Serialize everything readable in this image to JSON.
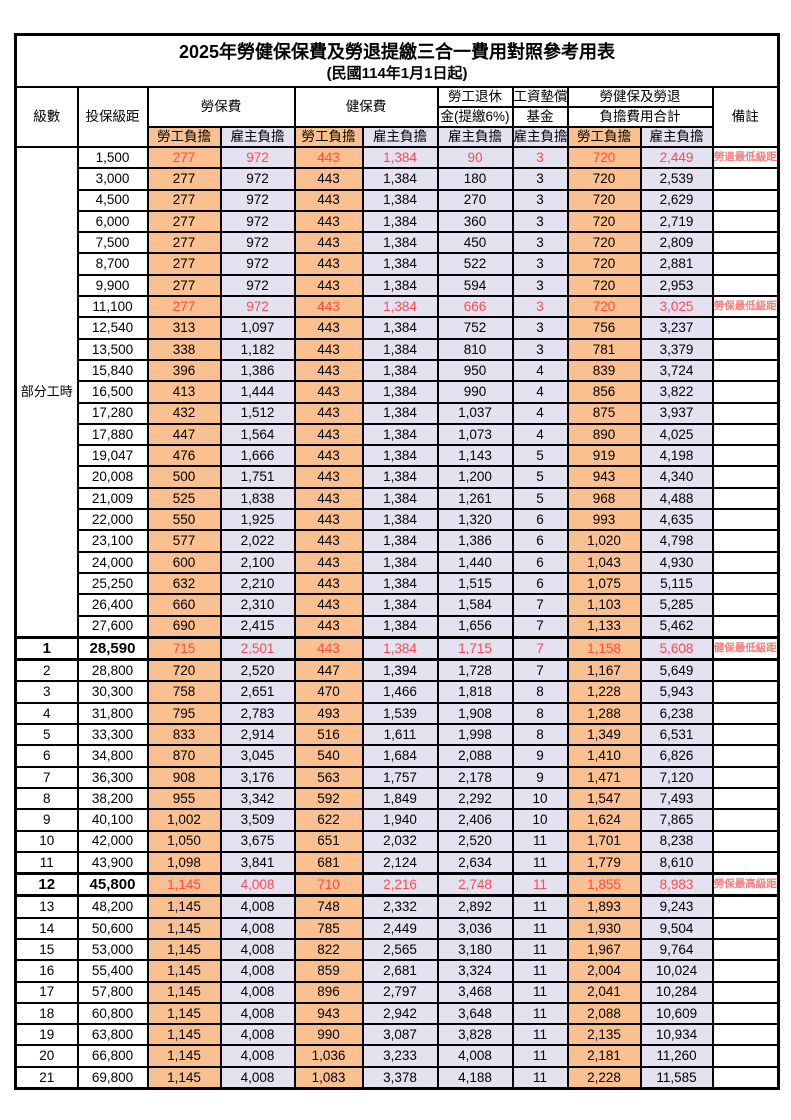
{
  "title": "2025年勞健保保費及勞退提繳三合一費用對照參考用表",
  "subtitle": "(民國114年1月1日起)",
  "colors": {
    "employee_bg": "#FAC08F",
    "employer_bg": "#E4E1F1",
    "red_value": "#FF4B4B",
    "red_remark": "#FF7B7B",
    "border": "#000000"
  },
  "header": {
    "level": "級數",
    "salary": "投保級距",
    "labor_fee": "勞保費",
    "health_fee": "健保費",
    "pension_line1": "勞工退休",
    "pension_line2": "金(提繳6%)",
    "wage_fund_line1": "工資墊償",
    "wage_fund_line2": "基金",
    "total_line1": "勞健保及勞退",
    "total_line2": "負擔費用合計",
    "remark": "備註",
    "employee": "勞工負擔",
    "employer": "雇主負擔"
  },
  "part_time_label": "部分工時",
  "rows": [
    {
      "level": "",
      "salary": "1,500",
      "laborEmp": "277",
      "laborEr": "972",
      "healthEmp": "443",
      "healthEr": "1,384",
      "pension": "90",
      "fund": "3",
      "totalEmp": "720",
      "totalEr": "2,449",
      "remark": "勞退最低級距",
      "red": true,
      "key": false
    },
    {
      "level": "",
      "salary": "3,000",
      "laborEmp": "277",
      "laborEr": "972",
      "healthEmp": "443",
      "healthEr": "1,384",
      "pension": "180",
      "fund": "3",
      "totalEmp": "720",
      "totalEr": "2,539",
      "remark": "",
      "red": false,
      "key": false
    },
    {
      "level": "",
      "salary": "4,500",
      "laborEmp": "277",
      "laborEr": "972",
      "healthEmp": "443",
      "healthEr": "1,384",
      "pension": "270",
      "fund": "3",
      "totalEmp": "720",
      "totalEr": "2,629",
      "remark": "",
      "red": false,
      "key": false
    },
    {
      "level": "",
      "salary": "6,000",
      "laborEmp": "277",
      "laborEr": "972",
      "healthEmp": "443",
      "healthEr": "1,384",
      "pension": "360",
      "fund": "3",
      "totalEmp": "720",
      "totalEr": "2,719",
      "remark": "",
      "red": false,
      "key": false
    },
    {
      "level": "",
      "salary": "7,500",
      "laborEmp": "277",
      "laborEr": "972",
      "healthEmp": "443",
      "healthEr": "1,384",
      "pension": "450",
      "fund": "3",
      "totalEmp": "720",
      "totalEr": "2,809",
      "remark": "",
      "red": false,
      "key": false
    },
    {
      "level": "",
      "salary": "8,700",
      "laborEmp": "277",
      "laborEr": "972",
      "healthEmp": "443",
      "healthEr": "1,384",
      "pension": "522",
      "fund": "3",
      "totalEmp": "720",
      "totalEr": "2,881",
      "remark": "",
      "red": false,
      "key": false
    },
    {
      "level": "",
      "salary": "9,900",
      "laborEmp": "277",
      "laborEr": "972",
      "healthEmp": "443",
      "healthEr": "1,384",
      "pension": "594",
      "fund": "3",
      "totalEmp": "720",
      "totalEr": "2,953",
      "remark": "",
      "red": false,
      "key": false
    },
    {
      "level": "",
      "salary": "11,100",
      "laborEmp": "277",
      "laborEr": "972",
      "healthEmp": "443",
      "healthEr": "1,384",
      "pension": "666",
      "fund": "3",
      "totalEmp": "720",
      "totalEr": "3,025",
      "remark": "勞保最低級距",
      "red": true,
      "key": false
    },
    {
      "level": "",
      "salary": "12,540",
      "laborEmp": "313",
      "laborEr": "1,097",
      "healthEmp": "443",
      "healthEr": "1,384",
      "pension": "752",
      "fund": "3",
      "totalEmp": "756",
      "totalEr": "3,237",
      "remark": "",
      "red": false,
      "key": false
    },
    {
      "level": "",
      "salary": "13,500",
      "laborEmp": "338",
      "laborEr": "1,182",
      "healthEmp": "443",
      "healthEr": "1,384",
      "pension": "810",
      "fund": "3",
      "totalEmp": "781",
      "totalEr": "3,379",
      "remark": "",
      "red": false,
      "key": false
    },
    {
      "level": "",
      "salary": "15,840",
      "laborEmp": "396",
      "laborEr": "1,386",
      "healthEmp": "443",
      "healthEr": "1,384",
      "pension": "950",
      "fund": "4",
      "totalEmp": "839",
      "totalEr": "3,724",
      "remark": "",
      "red": false,
      "key": false
    },
    {
      "level": "",
      "salary": "16,500",
      "laborEmp": "413",
      "laborEr": "1,444",
      "healthEmp": "443",
      "healthEr": "1,384",
      "pension": "990",
      "fund": "4",
      "totalEmp": "856",
      "totalEr": "3,822",
      "remark": "",
      "red": false,
      "key": false
    },
    {
      "level": "",
      "salary": "17,280",
      "laborEmp": "432",
      "laborEr": "1,512",
      "healthEmp": "443",
      "healthEr": "1,384",
      "pension": "1,037",
      "fund": "4",
      "totalEmp": "875",
      "totalEr": "3,937",
      "remark": "",
      "red": false,
      "key": false
    },
    {
      "level": "",
      "salary": "17,880",
      "laborEmp": "447",
      "laborEr": "1,564",
      "healthEmp": "443",
      "healthEr": "1,384",
      "pension": "1,073",
      "fund": "4",
      "totalEmp": "890",
      "totalEr": "4,025",
      "remark": "",
      "red": false,
      "key": false
    },
    {
      "level": "",
      "salary": "19,047",
      "laborEmp": "476",
      "laborEr": "1,666",
      "healthEmp": "443",
      "healthEr": "1,384",
      "pension": "1,143",
      "fund": "5",
      "totalEmp": "919",
      "totalEr": "4,198",
      "remark": "",
      "red": false,
      "key": false
    },
    {
      "level": "",
      "salary": "20,008",
      "laborEmp": "500",
      "laborEr": "1,751",
      "healthEmp": "443",
      "healthEr": "1,384",
      "pension": "1,200",
      "fund": "5",
      "totalEmp": "943",
      "totalEr": "4,340",
      "remark": "",
      "red": false,
      "key": false
    },
    {
      "level": "",
      "salary": "21,009",
      "laborEmp": "525",
      "laborEr": "1,838",
      "healthEmp": "443",
      "healthEr": "1,384",
      "pension": "1,261",
      "fund": "5",
      "totalEmp": "968",
      "totalEr": "4,488",
      "remark": "",
      "red": false,
      "key": false
    },
    {
      "level": "",
      "salary": "22,000",
      "laborEmp": "550",
      "laborEr": "1,925",
      "healthEmp": "443",
      "healthEr": "1,384",
      "pension": "1,320",
      "fund": "6",
      "totalEmp": "993",
      "totalEr": "4,635",
      "remark": "",
      "red": false,
      "key": false
    },
    {
      "level": "",
      "salary": "23,100",
      "laborEmp": "577",
      "laborEr": "2,022",
      "healthEmp": "443",
      "healthEr": "1,384",
      "pension": "1,386",
      "fund": "6",
      "totalEmp": "1,020",
      "totalEr": "4,798",
      "remark": "",
      "red": false,
      "key": false
    },
    {
      "level": "",
      "salary": "24,000",
      "laborEmp": "600",
      "laborEr": "2,100",
      "healthEmp": "443",
      "healthEr": "1,384",
      "pension": "1,440",
      "fund": "6",
      "totalEmp": "1,043",
      "totalEr": "4,930",
      "remark": "",
      "red": false,
      "key": false
    },
    {
      "level": "",
      "salary": "25,250",
      "laborEmp": "632",
      "laborEr": "2,210",
      "healthEmp": "443",
      "healthEr": "1,384",
      "pension": "1,515",
      "fund": "6",
      "totalEmp": "1,075",
      "totalEr": "5,115",
      "remark": "",
      "red": false,
      "key": false
    },
    {
      "level": "",
      "salary": "26,400",
      "laborEmp": "660",
      "laborEr": "2,310",
      "healthEmp": "443",
      "healthEr": "1,384",
      "pension": "1,584",
      "fund": "7",
      "totalEmp": "1,103",
      "totalEr": "5,285",
      "remark": "",
      "red": false,
      "key": false
    },
    {
      "level": "",
      "salary": "27,600",
      "laborEmp": "690",
      "laborEr": "2,415",
      "healthEmp": "443",
      "healthEr": "1,384",
      "pension": "1,656",
      "fund": "7",
      "totalEmp": "1,133",
      "totalEr": "5,462",
      "remark": "",
      "red": false,
      "key": false
    },
    {
      "level": "1",
      "salary": "28,590",
      "laborEmp": "715",
      "laborEr": "2,501",
      "healthEmp": "443",
      "healthEr": "1,384",
      "pension": "1,715",
      "fund": "7",
      "totalEmp": "1,158",
      "totalEr": "5,608",
      "remark": "健保最低級距",
      "red": true,
      "key": true
    },
    {
      "level": "2",
      "salary": "28,800",
      "laborEmp": "720",
      "laborEr": "2,520",
      "healthEmp": "447",
      "healthEr": "1,394",
      "pension": "1,728",
      "fund": "7",
      "totalEmp": "1,167",
      "totalEr": "5,649",
      "remark": "",
      "red": false,
      "key": false
    },
    {
      "level": "3",
      "salary": "30,300",
      "laborEmp": "758",
      "laborEr": "2,651",
      "healthEmp": "470",
      "healthEr": "1,466",
      "pension": "1,818",
      "fund": "8",
      "totalEmp": "1,228",
      "totalEr": "5,943",
      "remark": "",
      "red": false,
      "key": false
    },
    {
      "level": "4",
      "salary": "31,800",
      "laborEmp": "795",
      "laborEr": "2,783",
      "healthEmp": "493",
      "healthEr": "1,539",
      "pension": "1,908",
      "fund": "8",
      "totalEmp": "1,288",
      "totalEr": "6,238",
      "remark": "",
      "red": false,
      "key": false
    },
    {
      "level": "5",
      "salary": "33,300",
      "laborEmp": "833",
      "laborEr": "2,914",
      "healthEmp": "516",
      "healthEr": "1,611",
      "pension": "1,998",
      "fund": "8",
      "totalEmp": "1,349",
      "totalEr": "6,531",
      "remark": "",
      "red": false,
      "key": false
    },
    {
      "level": "6",
      "salary": "34,800",
      "laborEmp": "870",
      "laborEr": "3,045",
      "healthEmp": "540",
      "healthEr": "1,684",
      "pension": "2,088",
      "fund": "9",
      "totalEmp": "1,410",
      "totalEr": "6,826",
      "remark": "",
      "red": false,
      "key": false
    },
    {
      "level": "7",
      "salary": "36,300",
      "laborEmp": "908",
      "laborEr": "3,176",
      "healthEmp": "563",
      "healthEr": "1,757",
      "pension": "2,178",
      "fund": "9",
      "totalEmp": "1,471",
      "totalEr": "7,120",
      "remark": "",
      "red": false,
      "key": false
    },
    {
      "level": "8",
      "salary": "38,200",
      "laborEmp": "955",
      "laborEr": "3,342",
      "healthEmp": "592",
      "healthEr": "1,849",
      "pension": "2,292",
      "fund": "10",
      "totalEmp": "1,547",
      "totalEr": "7,493",
      "remark": "",
      "red": false,
      "key": false
    },
    {
      "level": "9",
      "salary": "40,100",
      "laborEmp": "1,002",
      "laborEr": "3,509",
      "healthEmp": "622",
      "healthEr": "1,940",
      "pension": "2,406",
      "fund": "10",
      "totalEmp": "1,624",
      "totalEr": "7,865",
      "remark": "",
      "red": false,
      "key": false
    },
    {
      "level": "10",
      "salary": "42,000",
      "laborEmp": "1,050",
      "laborEr": "3,675",
      "healthEmp": "651",
      "healthEr": "2,032",
      "pension": "2,520",
      "fund": "11",
      "totalEmp": "1,701",
      "totalEr": "8,238",
      "remark": "",
      "red": false,
      "key": false
    },
    {
      "level": "11",
      "salary": "43,900",
      "laborEmp": "1,098",
      "laborEr": "3,841",
      "healthEmp": "681",
      "healthEr": "2,124",
      "pension": "2,634",
      "fund": "11",
      "totalEmp": "1,779",
      "totalEr": "8,610",
      "remark": "",
      "red": false,
      "key": false
    },
    {
      "level": "12",
      "salary": "45,800",
      "laborEmp": "1,145",
      "laborEr": "4,008",
      "healthEmp": "710",
      "healthEr": "2,216",
      "pension": "2,748",
      "fund": "11",
      "totalEmp": "1,855",
      "totalEr": "8,983",
      "remark": "勞保最高級距",
      "red": true,
      "key": true
    },
    {
      "level": "13",
      "salary": "48,200",
      "laborEmp": "1,145",
      "laborEr": "4,008",
      "healthEmp": "748",
      "healthEr": "2,332",
      "pension": "2,892",
      "fund": "11",
      "totalEmp": "1,893",
      "totalEr": "9,243",
      "remark": "",
      "red": false,
      "key": false
    },
    {
      "level": "14",
      "salary": "50,600",
      "laborEmp": "1,145",
      "laborEr": "4,008",
      "healthEmp": "785",
      "healthEr": "2,449",
      "pension": "3,036",
      "fund": "11",
      "totalEmp": "1,930",
      "totalEr": "9,504",
      "remark": "",
      "red": false,
      "key": false
    },
    {
      "level": "15",
      "salary": "53,000",
      "laborEmp": "1,145",
      "laborEr": "4,008",
      "healthEmp": "822",
      "healthEr": "2,565",
      "pension": "3,180",
      "fund": "11",
      "totalEmp": "1,967",
      "totalEr": "9,764",
      "remark": "",
      "red": false,
      "key": false
    },
    {
      "level": "16",
      "salary": "55,400",
      "laborEmp": "1,145",
      "laborEr": "4,008",
      "healthEmp": "859",
      "healthEr": "2,681",
      "pension": "3,324",
      "fund": "11",
      "totalEmp": "2,004",
      "totalEr": "10,024",
      "remark": "",
      "red": false,
      "key": false
    },
    {
      "level": "17",
      "salary": "57,800",
      "laborEmp": "1,145",
      "laborEr": "4,008",
      "healthEmp": "896",
      "healthEr": "2,797",
      "pension": "3,468",
      "fund": "11",
      "totalEmp": "2,041",
      "totalEr": "10,284",
      "remark": "",
      "red": false,
      "key": false
    },
    {
      "level": "18",
      "salary": "60,800",
      "laborEmp": "1,145",
      "laborEr": "4,008",
      "healthEmp": "943",
      "healthEr": "2,942",
      "pension": "3,648",
      "fund": "11",
      "totalEmp": "2,088",
      "totalEr": "10,609",
      "remark": "",
      "red": false,
      "key": false
    },
    {
      "level": "19",
      "salary": "63,800",
      "laborEmp": "1,145",
      "laborEr": "4,008",
      "healthEmp": "990",
      "healthEr": "3,087",
      "pension": "3,828",
      "fund": "11",
      "totalEmp": "2,135",
      "totalEr": "10,934",
      "remark": "",
      "red": false,
      "key": false
    },
    {
      "level": "20",
      "salary": "66,800",
      "laborEmp": "1,145",
      "laborEr": "4,008",
      "healthEmp": "1,036",
      "healthEr": "3,233",
      "pension": "4,008",
      "fund": "11",
      "totalEmp": "2,181",
      "totalEr": "11,260",
      "remark": "",
      "red": false,
      "key": false
    },
    {
      "level": "21",
      "salary": "69,800",
      "laborEmp": "1,145",
      "laborEr": "4,008",
      "healthEmp": "1,083",
      "healthEr": "3,378",
      "pension": "4,188",
      "fund": "11",
      "totalEmp": "2,228",
      "totalEr": "11,585",
      "remark": "",
      "red": false,
      "key": false
    }
  ]
}
